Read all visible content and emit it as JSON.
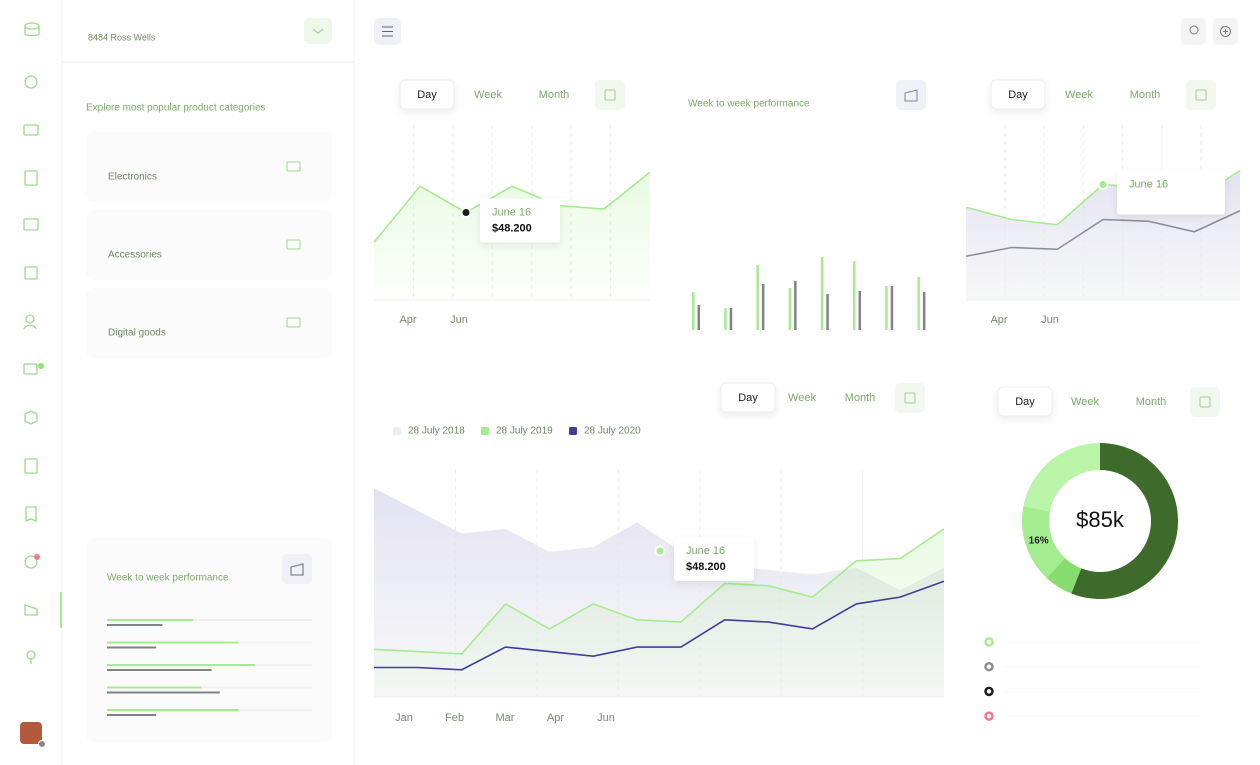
{
  "sidebar": {
    "user": "8484 Ross Wells",
    "heading": "Explore most popular product categories",
    "categories": [
      "Electronics",
      "Accessories",
      "Digital goods"
    ],
    "performance": {
      "title": "Week to week performance",
      "xlim": [
        0,
        100
      ],
      "series": [
        {
          "color": "#a6ec8e",
          "values": [
            42,
            64,
            72,
            46,
            64
          ]
        },
        {
          "color": "#7f8388",
          "values": [
            27,
            24,
            51,
            55,
            24
          ]
        }
      ]
    }
  },
  "tabs": [
    "Day",
    "Week",
    "Month"
  ],
  "charts": {
    "revenue": {
      "type": "line",
      "ylim": [
        0,
        100
      ],
      "x_labels": [
        "Apr",
        "Jun"
      ],
      "series": [
        {
          "color": "#a6ec8e",
          "values": [
            33,
            65,
            50,
            65,
            54,
            52,
            73
          ]
        }
      ],
      "tooltip": {
        "date": "June 16",
        "value": "$48.200"
      }
    },
    "weekly": {
      "type": "bar",
      "title": "Week to week performance",
      "ylim": [
        0,
        80
      ],
      "series": [
        {
          "color": "#a6ec8e",
          "values": [
            38,
            22,
            65,
            42,
            73,
            69,
            44,
            53
          ]
        },
        {
          "color": "#7f8388",
          "values": [
            25,
            22,
            46,
            49,
            36,
            39,
            44,
            38
          ]
        }
      ]
    },
    "comparison": {
      "type": "line",
      "ylim": [
        0,
        100
      ],
      "x_labels": [
        "Apr",
        "Jun"
      ],
      "series": [
        {
          "color": "#a6ec8e",
          "values": [
            53,
            46,
            43,
            66,
            64,
            57,
            74
          ]
        },
        {
          "color": "#8a8f95",
          "values": [
            25,
            30,
            29,
            46,
            45,
            39,
            51
          ]
        }
      ],
      "tooltip": {
        "date": "June 16"
      }
    },
    "sales": {
      "type": "line",
      "ylim": [
        0,
        100
      ],
      "x_labels": [
        "Jan",
        "Feb",
        "Mar",
        "Apr",
        "Jun"
      ],
      "series": [
        {
          "name": "28 July 2018",
          "color": "#dcdaf0",
          "values": [
            92,
            82,
            72,
            74,
            64,
            66,
            77,
            64,
            58,
            56,
            54,
            57,
            47,
            57
          ]
        },
        {
          "name": "28 July 2019",
          "color": "#a6ec8e",
          "values": [
            21,
            20,
            19,
            41,
            30,
            41,
            34,
            33,
            50,
            49,
            44,
            60,
            61,
            74
          ]
        },
        {
          "name": "28 July 2020",
          "color": "#3f3f9a",
          "values": [
            13,
            13,
            12,
            22,
            20,
            18,
            22,
            22,
            34,
            33,
            30,
            41,
            44,
            51
          ]
        }
      ],
      "tooltip": {
        "date": "June 16",
        "value": "$48.200"
      }
    },
    "share": {
      "type": "donut",
      "center_label": "$85k",
      "segments": [
        {
          "value": 56,
          "color": "#3e6b2b"
        },
        {
          "value": 6,
          "color": "#86dc6e"
        },
        {
          "value": 16,
          "color": "#a3ec8f",
          "label": "16%"
        },
        {
          "value": 22,
          "color": "#b9f4a8"
        }
      ],
      "legend_colors": [
        "#a6ec8e",
        "#8a8f95",
        "#1b1b1b",
        "#f07a8a"
      ]
    }
  }
}
